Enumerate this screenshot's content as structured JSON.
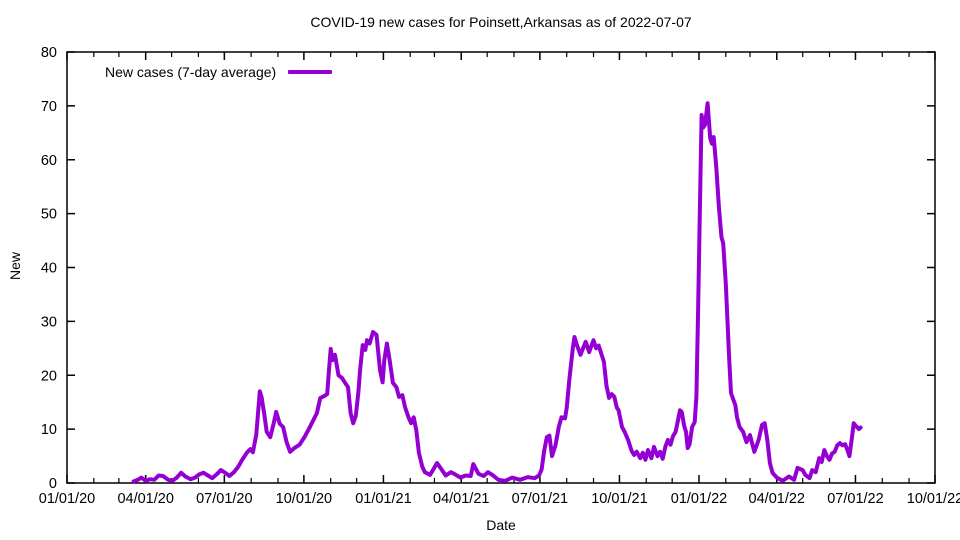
{
  "page": {
    "background": "#ffffff"
  },
  "chart_data": {
    "type": "line",
    "title": "COVID-19 new cases for Poinsett,Arkansas as of 2022-07-07",
    "xlabel": "Date",
    "ylabel": "New",
    "grid": false,
    "x_range": [
      "2020-01-01",
      "2022-10-01"
    ],
    "ylim": [
      0,
      80
    ],
    "y_ticks": [
      0,
      10,
      20,
      30,
      40,
      50,
      60,
      70,
      80
    ],
    "x_ticks": [
      {
        "date": "2020-01-01",
        "label": "01/01/20"
      },
      {
        "date": "2020-04-01",
        "label": "04/01/20"
      },
      {
        "date": "2020-07-01",
        "label": "07/01/20"
      },
      {
        "date": "2020-10-01",
        "label": "10/01/20"
      },
      {
        "date": "2021-01-01",
        "label": "01/01/21"
      },
      {
        "date": "2021-04-01",
        "label": "04/01/21"
      },
      {
        "date": "2021-07-01",
        "label": "07/01/21"
      },
      {
        "date": "2021-10-01",
        "label": "10/01/21"
      },
      {
        "date": "2022-01-01",
        "label": "01/01/22"
      },
      {
        "date": "2022-04-01",
        "label": "04/01/22"
      },
      {
        "date": "2022-07-01",
        "label": "07/01/22"
      },
      {
        "date": "2022-10-01",
        "label": "10/01/22"
      }
    ],
    "x_minor_ticks": "monthly",
    "legend": {
      "position": "top-left",
      "entries": [
        {
          "label": "New cases (7-day average)",
          "color": "#9400d3"
        }
      ]
    },
    "series": [
      {
        "name": "New cases (7-day average)",
        "color": "#9400d3",
        "line_width": 4,
        "points": [
          [
            "2020-03-18",
            0.3
          ],
          [
            "2020-03-23",
            0.6
          ],
          [
            "2020-03-27",
            1.0
          ],
          [
            "2020-04-01",
            0.4
          ],
          [
            "2020-04-06",
            0.7
          ],
          [
            "2020-04-11",
            0.6
          ],
          [
            "2020-04-16",
            1.4
          ],
          [
            "2020-04-21",
            1.3
          ],
          [
            "2020-04-27",
            0.6
          ],
          [
            "2020-05-02",
            0.4
          ],
          [
            "2020-05-07",
            1.0
          ],
          [
            "2020-05-12",
            1.9
          ],
          [
            "2020-05-17",
            1.2
          ],
          [
            "2020-05-23",
            0.7
          ],
          [
            "2020-05-28",
            1.0
          ],
          [
            "2020-06-02",
            1.6
          ],
          [
            "2020-06-07",
            1.9
          ],
          [
            "2020-06-12",
            1.4
          ],
          [
            "2020-06-17",
            0.9
          ],
          [
            "2020-06-22",
            1.6
          ],
          [
            "2020-06-27",
            2.4
          ],
          [
            "2020-07-02",
            1.9
          ],
          [
            "2020-07-07",
            1.3
          ],
          [
            "2020-07-12",
            2.0
          ],
          [
            "2020-07-17",
            3.0
          ],
          [
            "2020-07-22",
            4.4
          ],
          [
            "2020-07-27",
            5.6
          ],
          [
            "2020-07-31",
            6.3
          ],
          [
            "2020-08-03",
            5.7
          ],
          [
            "2020-08-07",
            9.0
          ],
          [
            "2020-08-11",
            17.0
          ],
          [
            "2020-08-13",
            16.0
          ],
          [
            "2020-08-16",
            13.0
          ],
          [
            "2020-08-19",
            9.5
          ],
          [
            "2020-08-23",
            8.5
          ],
          [
            "2020-08-27",
            11.0
          ],
          [
            "2020-08-30",
            13.2
          ],
          [
            "2020-09-03",
            11.0
          ],
          [
            "2020-09-07",
            10.4
          ],
          [
            "2020-09-11",
            7.6
          ],
          [
            "2020-09-15",
            5.8
          ],
          [
            "2020-09-20",
            6.5
          ],
          [
            "2020-09-26",
            7.1
          ],
          [
            "2020-10-02",
            8.6
          ],
          [
            "2020-10-08",
            10.4
          ],
          [
            "2020-10-12",
            11.7
          ],
          [
            "2020-10-16",
            13.0
          ],
          [
            "2020-10-20",
            15.8
          ],
          [
            "2020-10-24",
            16.1
          ],
          [
            "2020-10-28",
            16.5
          ],
          [
            "2020-10-30",
            21.0
          ],
          [
            "2020-11-01",
            24.9
          ],
          [
            "2020-11-03",
            22.8
          ],
          [
            "2020-11-06",
            23.8
          ],
          [
            "2020-11-10",
            20.0
          ],
          [
            "2020-11-14",
            19.5
          ],
          [
            "2020-11-18",
            18.5
          ],
          [
            "2020-11-21",
            17.8
          ],
          [
            "2020-11-24",
            13.0
          ],
          [
            "2020-11-27",
            11.1
          ],
          [
            "2020-11-30",
            12.5
          ],
          [
            "2020-12-03",
            16.9
          ],
          [
            "2020-12-05",
            21.0
          ],
          [
            "2020-12-08",
            25.6
          ],
          [
            "2020-12-11",
            24.7
          ],
          [
            "2020-12-13",
            26.5
          ],
          [
            "2020-12-16",
            25.9
          ],
          [
            "2020-12-20",
            28.0
          ],
          [
            "2020-12-24",
            27.5
          ],
          [
            "2020-12-28",
            21.0
          ],
          [
            "2020-12-31",
            18.7
          ],
          [
            "2021-01-02",
            22.8
          ],
          [
            "2021-01-05",
            25.9
          ],
          [
            "2021-01-08",
            23.0
          ],
          [
            "2021-01-12",
            18.6
          ],
          [
            "2021-01-16",
            17.8
          ],
          [
            "2021-01-19",
            16.0
          ],
          [
            "2021-01-23",
            16.3
          ],
          [
            "2021-01-26",
            14.1
          ],
          [
            "2021-01-30",
            12.2
          ],
          [
            "2021-02-02",
            11.1
          ],
          [
            "2021-02-05",
            12.2
          ],
          [
            "2021-02-08",
            9.8
          ],
          [
            "2021-02-11",
            5.6
          ],
          [
            "2021-02-15",
            3.0
          ],
          [
            "2021-02-18",
            2.0
          ],
          [
            "2021-02-24",
            1.5
          ],
          [
            "2021-03-04",
            3.7
          ],
          [
            "2021-03-08",
            2.8
          ],
          [
            "2021-03-14",
            1.4
          ],
          [
            "2021-03-20",
            2.0
          ],
          [
            "2021-03-25",
            1.6
          ],
          [
            "2021-03-31",
            1.0
          ],
          [
            "2021-04-06",
            1.4
          ],
          [
            "2021-04-12",
            1.3
          ],
          [
            "2021-04-15",
            3.5
          ],
          [
            "2021-04-21",
            1.7
          ],
          [
            "2021-04-27",
            1.3
          ],
          [
            "2021-05-02",
            2.0
          ],
          [
            "2021-05-08",
            1.4
          ],
          [
            "2021-05-14",
            0.6
          ],
          [
            "2021-05-22",
            0.4
          ],
          [
            "2021-05-30",
            1.0
          ],
          [
            "2021-06-08",
            0.6
          ],
          [
            "2021-06-17",
            1.1
          ],
          [
            "2021-06-25",
            0.9
          ],
          [
            "2021-06-30",
            1.4
          ],
          [
            "2021-07-03",
            2.5
          ],
          [
            "2021-07-06",
            6.0
          ],
          [
            "2021-07-09",
            8.5
          ],
          [
            "2021-07-12",
            8.8
          ],
          [
            "2021-07-15",
            5.0
          ],
          [
            "2021-07-19",
            7.0
          ],
          [
            "2021-07-23",
            10.5
          ],
          [
            "2021-07-26",
            12.2
          ],
          [
            "2021-07-30",
            12.0
          ],
          [
            "2021-08-01",
            13.9
          ],
          [
            "2021-08-04",
            19.1
          ],
          [
            "2021-08-08",
            25.0
          ],
          [
            "2021-08-10",
            27.1
          ],
          [
            "2021-08-13",
            25.5
          ],
          [
            "2021-08-17",
            23.8
          ],
          [
            "2021-08-20",
            25.0
          ],
          [
            "2021-08-23",
            26.2
          ],
          [
            "2021-08-27",
            24.3
          ],
          [
            "2021-09-01",
            26.5
          ],
          [
            "2021-09-04",
            25.0
          ],
          [
            "2021-09-07",
            25.5
          ],
          [
            "2021-09-10",
            24.0
          ],
          [
            "2021-09-13",
            22.5
          ],
          [
            "2021-09-16",
            18.0
          ],
          [
            "2021-09-19",
            15.8
          ],
          [
            "2021-09-22",
            16.5
          ],
          [
            "2021-09-25",
            16.0
          ],
          [
            "2021-09-28",
            14.0
          ],
          [
            "2021-09-30",
            13.5
          ],
          [
            "2021-10-04",
            10.4
          ],
          [
            "2021-10-07",
            9.5
          ],
          [
            "2021-10-11",
            8.0
          ],
          [
            "2021-10-15",
            6.0
          ],
          [
            "2021-10-18",
            5.2
          ],
          [
            "2021-10-21",
            5.8
          ],
          [
            "2021-10-25",
            4.6
          ],
          [
            "2021-10-28",
            5.6
          ],
          [
            "2021-10-31",
            4.3
          ],
          [
            "2021-11-03",
            6.1
          ],
          [
            "2021-11-07",
            4.6
          ],
          [
            "2021-11-10",
            6.7
          ],
          [
            "2021-11-14",
            5.0
          ],
          [
            "2021-11-17",
            5.8
          ],
          [
            "2021-11-20",
            4.5
          ],
          [
            "2021-11-23",
            6.7
          ],
          [
            "2021-11-26",
            8.0
          ],
          [
            "2021-11-29",
            7.1
          ],
          [
            "2021-12-02",
            8.7
          ],
          [
            "2021-12-05",
            9.5
          ],
          [
            "2021-12-07",
            11.1
          ],
          [
            "2021-12-10",
            13.5
          ],
          [
            "2021-12-12",
            13.2
          ],
          [
            "2021-12-15",
            10.5
          ],
          [
            "2021-12-17",
            9.5
          ],
          [
            "2021-12-19",
            6.5
          ],
          [
            "2021-12-21",
            7.1
          ],
          [
            "2021-12-24",
            10.4
          ],
          [
            "2021-12-27",
            11.3
          ],
          [
            "2021-12-29",
            16.0
          ],
          [
            "2021-12-31",
            32.0
          ],
          [
            "2022-01-02",
            50.0
          ],
          [
            "2022-01-04",
            68.3
          ],
          [
            "2022-01-06",
            66.0
          ],
          [
            "2022-01-08",
            66.5
          ],
          [
            "2022-01-11",
            70.5
          ],
          [
            "2022-01-14",
            64.0
          ],
          [
            "2022-01-16",
            63.0
          ],
          [
            "2022-01-18",
            64.2
          ],
          [
            "2022-01-21",
            58.6
          ],
          [
            "2022-01-24",
            51.2
          ],
          [
            "2022-01-27",
            45.6
          ],
          [
            "2022-01-29",
            44.5
          ],
          [
            "2022-02-01",
            37.0
          ],
          [
            "2022-02-03",
            30.0
          ],
          [
            "2022-02-05",
            23.0
          ],
          [
            "2022-02-07",
            16.7
          ],
          [
            "2022-02-09",
            15.8
          ],
          [
            "2022-02-12",
            14.5
          ],
          [
            "2022-02-14",
            12.2
          ],
          [
            "2022-02-17",
            10.4
          ],
          [
            "2022-02-21",
            9.5
          ],
          [
            "2022-02-25",
            7.6
          ],
          [
            "2022-03-01",
            8.9
          ],
          [
            "2022-03-06",
            5.8
          ],
          [
            "2022-03-11",
            8.0
          ],
          [
            "2022-03-15",
            10.8
          ],
          [
            "2022-03-18",
            11.1
          ],
          [
            "2022-03-21",
            8.0
          ],
          [
            "2022-03-24",
            3.7
          ],
          [
            "2022-03-27",
            1.9
          ],
          [
            "2022-04-01",
            1.0
          ],
          [
            "2022-04-08",
            0.4
          ],
          [
            "2022-04-15",
            1.2
          ],
          [
            "2022-04-21",
            0.6
          ],
          [
            "2022-04-25",
            2.8
          ],
          [
            "2022-05-01",
            2.4
          ],
          [
            "2022-05-04",
            1.5
          ],
          [
            "2022-05-09",
            0.9
          ],
          [
            "2022-05-12",
            2.4
          ],
          [
            "2022-05-16",
            2.0
          ],
          [
            "2022-05-20",
            4.6
          ],
          [
            "2022-05-23",
            3.9
          ],
          [
            "2022-05-26",
            6.1
          ],
          [
            "2022-05-29",
            5.0
          ],
          [
            "2022-06-01",
            4.3
          ],
          [
            "2022-06-04",
            5.5
          ],
          [
            "2022-06-07",
            5.8
          ],
          [
            "2022-06-10",
            7.0
          ],
          [
            "2022-06-13",
            7.4
          ],
          [
            "2022-06-16",
            7.0
          ],
          [
            "2022-06-19",
            7.2
          ],
          [
            "2022-06-22",
            6.0
          ],
          [
            "2022-06-24",
            5.0
          ],
          [
            "2022-06-27",
            8.5
          ],
          [
            "2022-06-29",
            11.1
          ],
          [
            "2022-07-02",
            10.5
          ],
          [
            "2022-07-05",
            10.0
          ],
          [
            "2022-07-07",
            10.3
          ]
        ]
      }
    ]
  }
}
